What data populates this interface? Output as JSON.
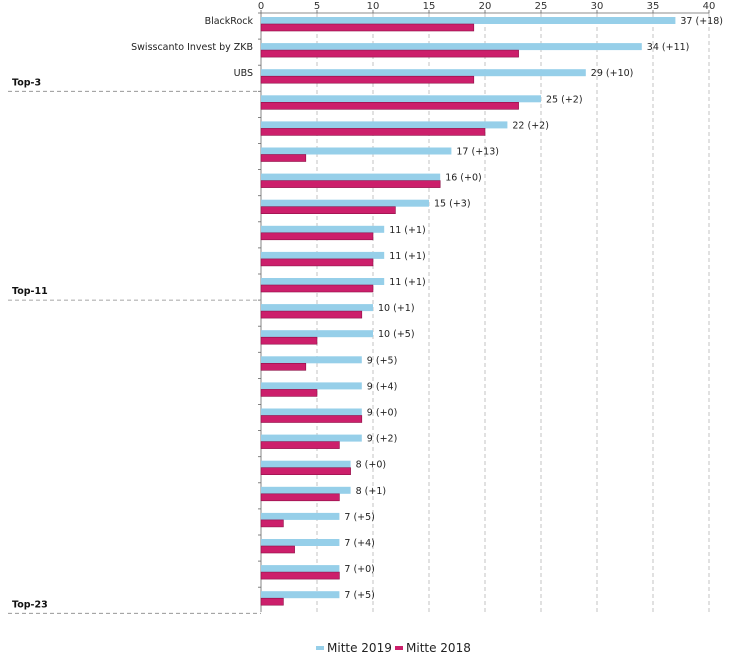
{
  "chart_data": {
    "type": "bar",
    "orientation": "horizontal",
    "xlim": [
      0,
      40
    ],
    "xticks": [
      0,
      5,
      10,
      15,
      20,
      25,
      30,
      35,
      40
    ],
    "grid": true,
    "legend_position": "bottom",
    "categories": [
      "BlackRock",
      "Swisscanto Invest by ZKB",
      "UBS",
      "",
      "",
      "",
      "",
      "",
      "",
      "",
      "",
      "",
      "",
      "",
      "",
      "",
      "",
      "",
      "",
      "",
      "",
      "",
      ""
    ],
    "series": [
      {
        "name": "Mitte 2019",
        "color": "#96cfe9",
        "values": [
          37,
          34,
          29,
          25,
          22,
          17,
          16,
          15,
          11,
          11,
          11,
          10,
          10,
          9,
          9,
          9,
          9,
          8,
          8,
          7,
          7,
          7,
          7
        ]
      },
      {
        "name": "Mitte 2018",
        "color": "#cc1f6b",
        "values": [
          19,
          23,
          19,
          23,
          20,
          4,
          16,
          12,
          10,
          10,
          10,
          9,
          5,
          4,
          5,
          9,
          7,
          8,
          7,
          2,
          3,
          7,
          2
        ]
      }
    ],
    "data_labels": [
      "37 (+18)",
      "34 (+11)",
      "29 (+10)",
      "25 (+2)",
      "22 (+2)",
      "17 (+13)",
      "16 (+0)",
      "15 (+3)",
      "11 (+1)",
      "11 (+1)",
      "11 (+1)",
      "10 (+1)",
      "10 (+5)",
      "9 (+5)",
      "9 (+4)",
      "9 (+0)",
      "9 (+2)",
      "8 (+0)",
      "8 (+1)",
      "7 (+5)",
      "7 (+4)",
      "7 (+0)",
      "7 (+5)"
    ],
    "group_markers": [
      {
        "label": "Top-3",
        "after_index": 2
      },
      {
        "label": "Top-11",
        "after_index": 10
      },
      {
        "label": "Top-23",
        "after_index": 22
      }
    ]
  }
}
